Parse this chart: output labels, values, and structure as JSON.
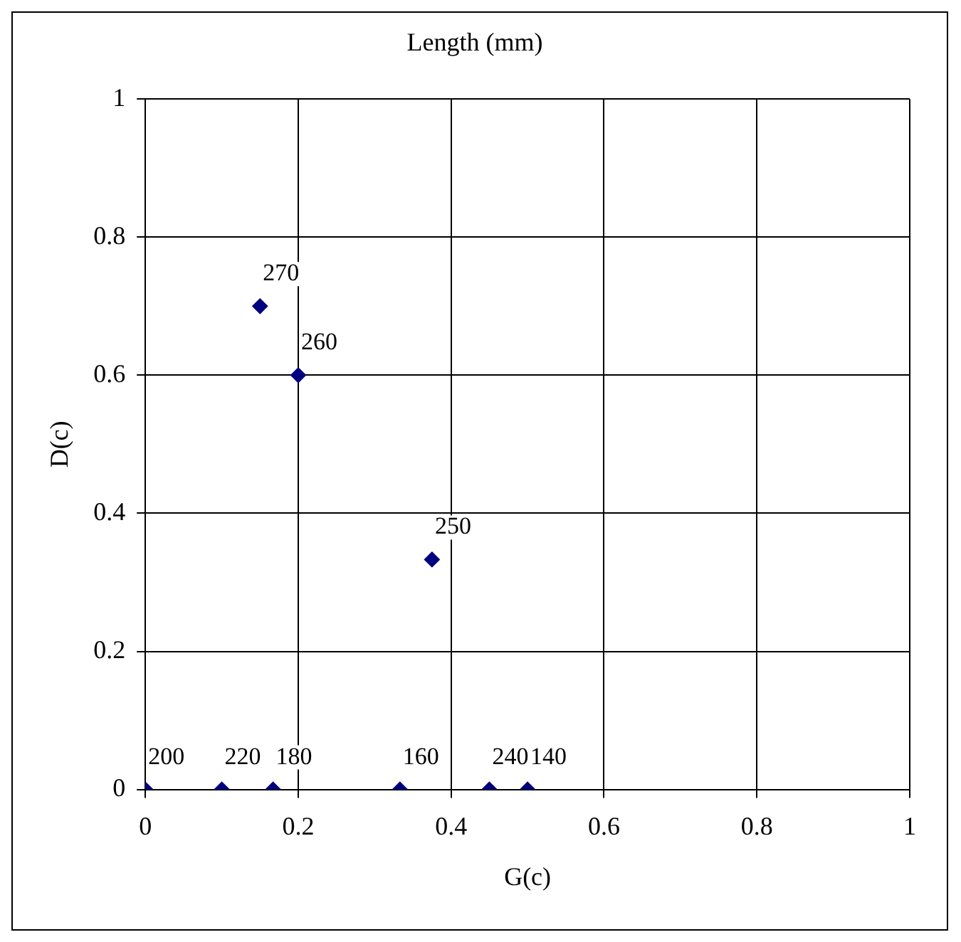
{
  "chart_data": {
    "type": "scatter",
    "title": "Length (mm)",
    "xlabel": "G(c)",
    "ylabel": "D(c)",
    "x": [
      0,
      0.1,
      0.15,
      0.167,
      0.2,
      0.333,
      0.375,
      0.45,
      0.5
    ],
    "values": [
      0,
      0,
      0.7,
      0,
      0.6,
      0,
      0.333,
      0,
      0
    ],
    "annotations": [
      {
        "text": "200",
        "x": 0,
        "y": 0
      },
      {
        "text": "220",
        "x": 0.1,
        "y": 0
      },
      {
        "text": "270",
        "x": 0.15,
        "y": 0.7
      },
      {
        "text": "180",
        "x": 0.167,
        "y": 0
      },
      {
        "text": "260",
        "x": 0.2,
        "y": 0.6
      },
      {
        "text": "160",
        "x": 0.333,
        "y": 0
      },
      {
        "text": "250",
        "x": 0.375,
        "y": 0.333
      },
      {
        "text": "240",
        "x": 0.45,
        "y": 0
      },
      {
        "text": "140",
        "x": 0.5,
        "y": 0
      }
    ],
    "color": "#000080",
    "marker": "diamond",
    "grid": true,
    "xlim": [
      0,
      1
    ],
    "xticks": [
      0,
      0.2,
      0.4,
      0.6,
      0.8,
      1
    ],
    "ylim": [
      0,
      1
    ],
    "yticks": [
      0,
      0.2,
      0.4,
      0.6,
      0.8,
      1
    ]
  }
}
